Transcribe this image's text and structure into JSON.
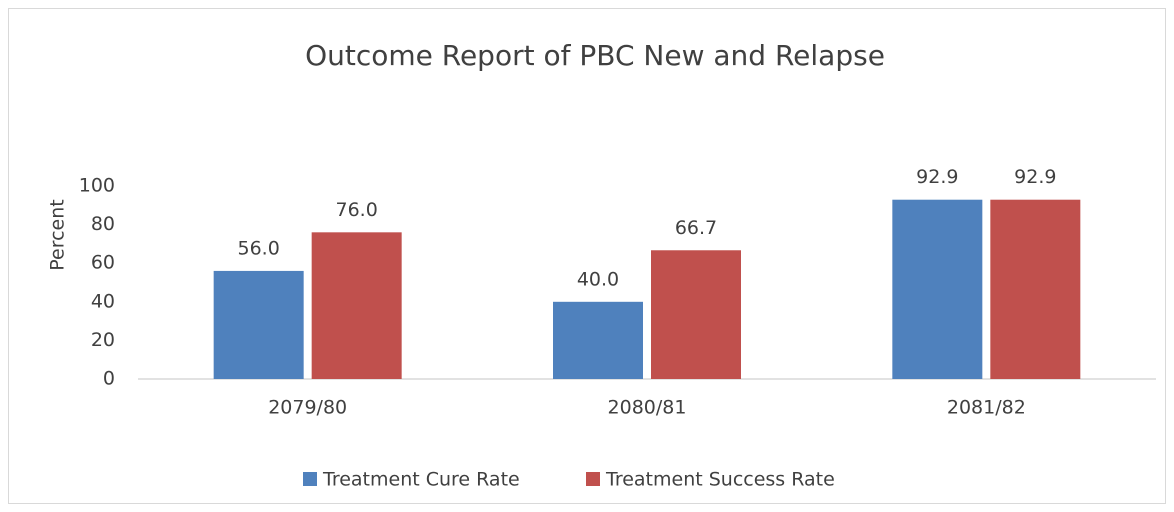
{
  "chart_data": {
    "type": "bar",
    "title": "Outcome Report of PBC New and Relapse",
    "y_label": "Percent",
    "categories": [
      "2079/80",
      "2080/81",
      "2081/82"
    ],
    "series": [
      {
        "name": "Treatment Cure Rate",
        "color": "#4f81bd",
        "values": [
          56.0,
          40.0,
          92.9
        ],
        "value_labels": [
          "56.0",
          "40.0",
          "92.9"
        ]
      },
      {
        "name": "Treatment Success Rate",
        "color": "#c0504d",
        "values": [
          76.0,
          66.7,
          92.9
        ],
        "value_labels": [
          "76.0",
          "66.7",
          "92.9"
        ]
      }
    ],
    "ylim": [
      0,
      100
    ],
    "yticks": [
      0,
      20,
      40,
      60,
      80,
      100
    ],
    "grid": false,
    "legend": "bottom"
  }
}
